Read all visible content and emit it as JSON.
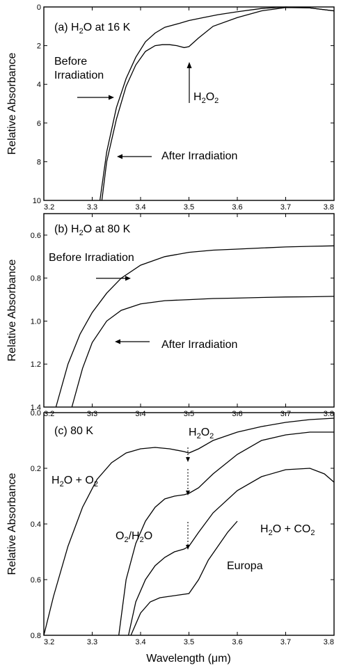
{
  "chart_data": [
    {
      "type": "line",
      "title": "",
      "panel_label": "(a) H2O at 16 K",
      "xlabel": "",
      "ylabel": "Relative Absorbance",
      "xlim": [
        3.2,
        3.8
      ],
      "ylim": [
        10,
        0
      ],
      "y_inverted": true,
      "grid": false,
      "x_ticks": [
        "3.2",
        "3.3",
        "3.4",
        "3.5",
        "3.6",
        "3.7",
        "3.8"
      ],
      "y_ticks": [
        "0",
        "2",
        "4",
        "6",
        "8",
        "10"
      ],
      "series": [
        {
          "name": "Before Irradiation",
          "x": [
            3.316,
            3.33,
            3.35,
            3.37,
            3.39,
            3.41,
            3.43,
            3.45,
            3.48,
            3.5,
            3.53,
            3.56,
            3.6,
            3.65,
            3.7,
            3.75,
            3.8
          ],
          "y": [
            10,
            7.5,
            5.2,
            3.7,
            2.6,
            1.8,
            1.35,
            1.05,
            0.85,
            0.7,
            0.55,
            0.4,
            0.25,
            0.08,
            0.0,
            0.05,
            0.2
          ]
        },
        {
          "name": "After Irradiation",
          "x": [
            3.32,
            3.33,
            3.35,
            3.37,
            3.39,
            3.41,
            3.43,
            3.445,
            3.46,
            3.475,
            3.49,
            3.5,
            3.52,
            3.55,
            3.6,
            3.65,
            3.7,
            3.75,
            3.8
          ],
          "y": [
            10,
            8.0,
            5.8,
            4.1,
            3.0,
            2.3,
            2.0,
            1.95,
            1.95,
            2.0,
            2.1,
            2.05,
            1.6,
            1.0,
            0.55,
            0.2,
            0.03,
            0.05,
            0.2
          ]
        }
      ],
      "annotations": [
        {
          "text": "Before",
          "text2": "Irradiation"
        },
        {
          "text": "After Irradiation"
        },
        {
          "text": "H2O2"
        }
      ]
    },
    {
      "type": "line",
      "title": "",
      "panel_label": "(b) H2O at 80 K",
      "xlabel": "",
      "ylabel": "Relative Absorbance",
      "xlim": [
        3.2,
        3.8
      ],
      "ylim": [
        1.4,
        0.5
      ],
      "y_inverted": true,
      "grid": false,
      "x_ticks": [
        "3.2",
        "3.3",
        "3.4",
        "3.5",
        "3.6",
        "3.7",
        "3.8"
      ],
      "y_ticks": [
        "0.6",
        "0.8",
        "1.0",
        "1.2",
        "1.4"
      ],
      "series": [
        {
          "name": "Before Irradiation",
          "x": [
            3.225,
            3.25,
            3.275,
            3.3,
            3.33,
            3.36,
            3.4,
            3.45,
            3.5,
            3.55,
            3.6,
            3.65,
            3.7,
            3.75,
            3.8
          ],
          "y": [
            1.4,
            1.2,
            1.06,
            0.96,
            0.87,
            0.8,
            0.74,
            0.7,
            0.68,
            0.67,
            0.665,
            0.66,
            0.655,
            0.652,
            0.65
          ]
        },
        {
          "name": "After Irradiation",
          "x": [
            3.258,
            3.28,
            3.3,
            3.33,
            3.36,
            3.4,
            3.45,
            3.5,
            3.55,
            3.6,
            3.65,
            3.7,
            3.75,
            3.8
          ],
          "y": [
            1.4,
            1.22,
            1.1,
            1.0,
            0.95,
            0.92,
            0.905,
            0.9,
            0.895,
            0.893,
            0.89,
            0.888,
            0.887,
            0.885
          ]
        }
      ],
      "annotations": [
        {
          "text": "Before Irradiation"
        },
        {
          "text": "After Irradiation"
        }
      ]
    },
    {
      "type": "line",
      "title": "",
      "panel_label": "(c) 80 K",
      "xlabel": "Wavelength (μm)",
      "ylabel": "Relative Absorbance",
      "xlim": [
        3.2,
        3.8
      ],
      "ylim": [
        0.8,
        0.0
      ],
      "y_inverted": true,
      "grid": false,
      "x_ticks": [
        "3.2",
        "3.3",
        "3.4",
        "3.5",
        "3.6",
        "3.7",
        "3.8"
      ],
      "y_ticks": [
        "0.0",
        "0.2",
        "0.4",
        "0.6",
        "0.8"
      ],
      "series": [
        {
          "name": "H2O + O2",
          "x": [
            3.2,
            3.22,
            3.25,
            3.28,
            3.31,
            3.34,
            3.37,
            3.4,
            3.43,
            3.46,
            3.49,
            3.5,
            3.52,
            3.55,
            3.6,
            3.65,
            3.7,
            3.75,
            3.8
          ],
          "y": [
            0.8,
            0.66,
            0.48,
            0.34,
            0.24,
            0.18,
            0.145,
            0.13,
            0.125,
            0.13,
            0.14,
            0.145,
            0.13,
            0.1,
            0.07,
            0.05,
            0.035,
            0.025,
            0.02
          ]
        },
        {
          "name": "O2/H2O",
          "x": [
            3.355,
            3.37,
            3.39,
            3.41,
            3.43,
            3.45,
            3.47,
            3.49,
            3.5,
            3.52,
            3.55,
            3.6,
            3.65,
            3.7,
            3.75,
            3.8
          ],
          "y": [
            0.8,
            0.6,
            0.47,
            0.39,
            0.34,
            0.31,
            0.3,
            0.295,
            0.29,
            0.27,
            0.22,
            0.15,
            0.1,
            0.08,
            0.07,
            0.07
          ]
        },
        {
          "name": "H2O + CO2",
          "x": [
            3.375,
            3.39,
            3.41,
            3.43,
            3.45,
            3.47,
            3.49,
            3.5,
            3.52,
            3.55,
            3.6,
            3.65,
            3.7,
            3.75,
            3.78,
            3.8
          ],
          "y": [
            0.8,
            0.68,
            0.6,
            0.55,
            0.52,
            0.5,
            0.49,
            0.48,
            0.43,
            0.36,
            0.28,
            0.23,
            0.205,
            0.2,
            0.22,
            0.25
          ]
        },
        {
          "name": "Europa",
          "x": [
            3.38,
            3.4,
            3.42,
            3.44,
            3.46,
            3.48,
            3.5,
            3.52,
            3.54,
            3.56,
            3.58,
            3.6
          ],
          "y": [
            0.8,
            0.72,
            0.68,
            0.665,
            0.66,
            0.655,
            0.65,
            0.6,
            0.53,
            0.48,
            0.43,
            0.39
          ]
        }
      ],
      "annotations": [
        {
          "text": "H2O2"
        },
        {
          "text": "H2O + O2"
        },
        {
          "text": "O2/H2O"
        },
        {
          "text": "H2O + CO2"
        },
        {
          "text": "Europa"
        }
      ]
    }
  ]
}
